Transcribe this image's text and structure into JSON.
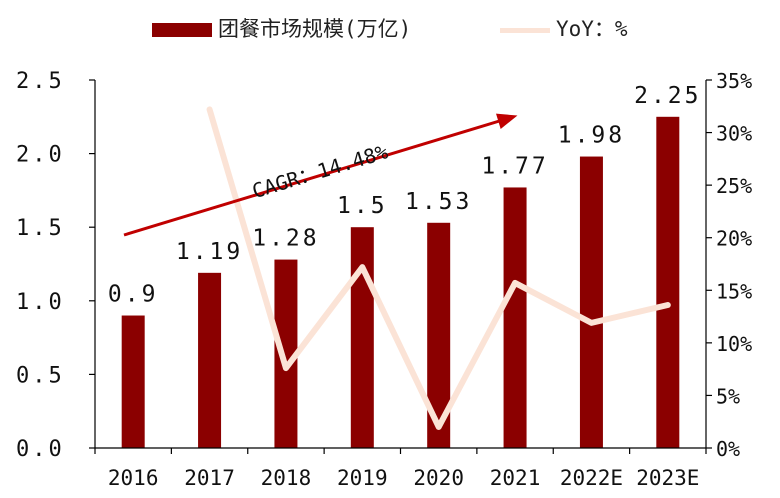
{
  "legend": {
    "bar_label": "团餐市场规模(万亿)",
    "line_label": "YoY：%"
  },
  "colors": {
    "bar": "#8B0000",
    "line": "#FBE3D6",
    "arrow": "#C00000",
    "axis": "#000000"
  },
  "annotation": {
    "text": "CAGR：14.48%"
  },
  "chart_data": {
    "type": "bar",
    "categories": [
      "2016",
      "2017",
      "2018",
      "2019",
      "2020",
      "2021",
      "2022E",
      "2023E"
    ],
    "series": [
      {
        "name": "团餐市场规模(万亿)",
        "type": "bar",
        "axis": "left",
        "values": [
          0.9,
          1.19,
          1.28,
          1.5,
          1.53,
          1.77,
          1.98,
          2.25
        ],
        "value_labels": [
          "0.9",
          "1.19",
          "1.28",
          "1.5",
          "1.53",
          "1.77",
          "1.98",
          "2.25"
        ]
      },
      {
        "name": "YoY：%",
        "type": "line",
        "axis": "right",
        "values": [
          null,
          32.2,
          7.6,
          17.2,
          2.0,
          15.7,
          11.9,
          13.6
        ]
      }
    ],
    "y_left": {
      "ylim": [
        0,
        2.5
      ],
      "ticks": [
        "0.0",
        "0.5",
        "1.0",
        "1.5",
        "2.0",
        "2.5"
      ],
      "tick_values": [
        0,
        0.5,
        1,
        1.5,
        2,
        2.5
      ]
    },
    "y_right": {
      "ylim": [
        0,
        35
      ],
      "ticks": [
        "0%",
        "5%",
        "10%",
        "15%",
        "20%",
        "25%",
        "30%",
        "35%"
      ],
      "tick_values": [
        0,
        5,
        10,
        15,
        20,
        25,
        30,
        35
      ]
    },
    "grid": false,
    "legend_position": "top"
  }
}
